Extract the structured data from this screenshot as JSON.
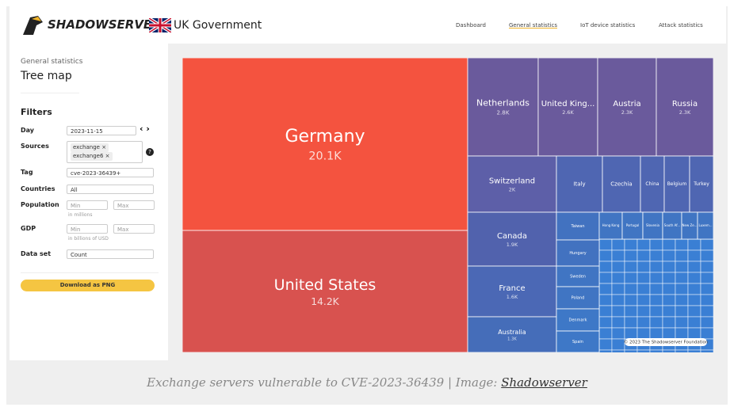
{
  "header": {
    "brand": "SHADOWSERVER",
    "partner": "UK Government",
    "nav": [
      "Dashboard",
      "General statistics",
      "IoT device statistics",
      "Attack statistics"
    ]
  },
  "sidebar": {
    "subtitle": "General statistics",
    "title": "Tree map",
    "filters_title": "Filters",
    "day": {
      "label": "Day",
      "value": "2023-11-15"
    },
    "sources": {
      "label": "Sources",
      "tags": [
        "exchange",
        "exchange6"
      ]
    },
    "tag": {
      "label": "Tag",
      "value": "cve-2023-36439+"
    },
    "countries": {
      "label": "Countries",
      "value": "All"
    },
    "population": {
      "label": "Population",
      "min": "Min",
      "max": "Max",
      "hint": "in millions"
    },
    "gdp": {
      "label": "GDP",
      "min": "Min",
      "max": "Max",
      "hint": "in billions of USD"
    },
    "dataset": {
      "label": "Data set",
      "value": "Count"
    },
    "download": "Download as PNG"
  },
  "treemap": {
    "cells": [
      {
        "label": "Germany",
        "value": "20.1K"
      },
      {
        "label": "United States",
        "value": "14.2K"
      },
      {
        "label": "Netherlands",
        "value": "2.8K"
      },
      {
        "label": "United King...",
        "value": "2.6K"
      },
      {
        "label": "Austria",
        "value": "2.3K"
      },
      {
        "label": "Russia",
        "value": "2.3K"
      },
      {
        "label": "Switzerland",
        "value": "2K"
      },
      {
        "label": "Italy"
      },
      {
        "label": "Czechia"
      },
      {
        "label": "China"
      },
      {
        "label": "Belgium"
      },
      {
        "label": "Turkey"
      },
      {
        "label": "Canada",
        "value": "1.9K"
      },
      {
        "label": "France",
        "value": "1.6K"
      },
      {
        "label": "Australia",
        "value": "1.3K"
      },
      {
        "label": "Taiwan"
      },
      {
        "label": "Hungary"
      },
      {
        "label": "Sweden"
      },
      {
        "label": "Poland"
      },
      {
        "label": "Denmark"
      },
      {
        "label": "Spain"
      },
      {
        "label": "Hong Kong"
      },
      {
        "label": "Portugal"
      },
      {
        "label": "Slovenia"
      },
      {
        "label": "South Af..."
      },
      {
        "label": "New Ze..."
      },
      {
        "label": "Luxem..."
      }
    ],
    "credit": "© 2023 The Shadowserver Foundation"
  },
  "caption": {
    "text": "Exchange servers vulnerable to CVE-2023-36439 | Image:",
    "source": "Shadowserver"
  }
}
